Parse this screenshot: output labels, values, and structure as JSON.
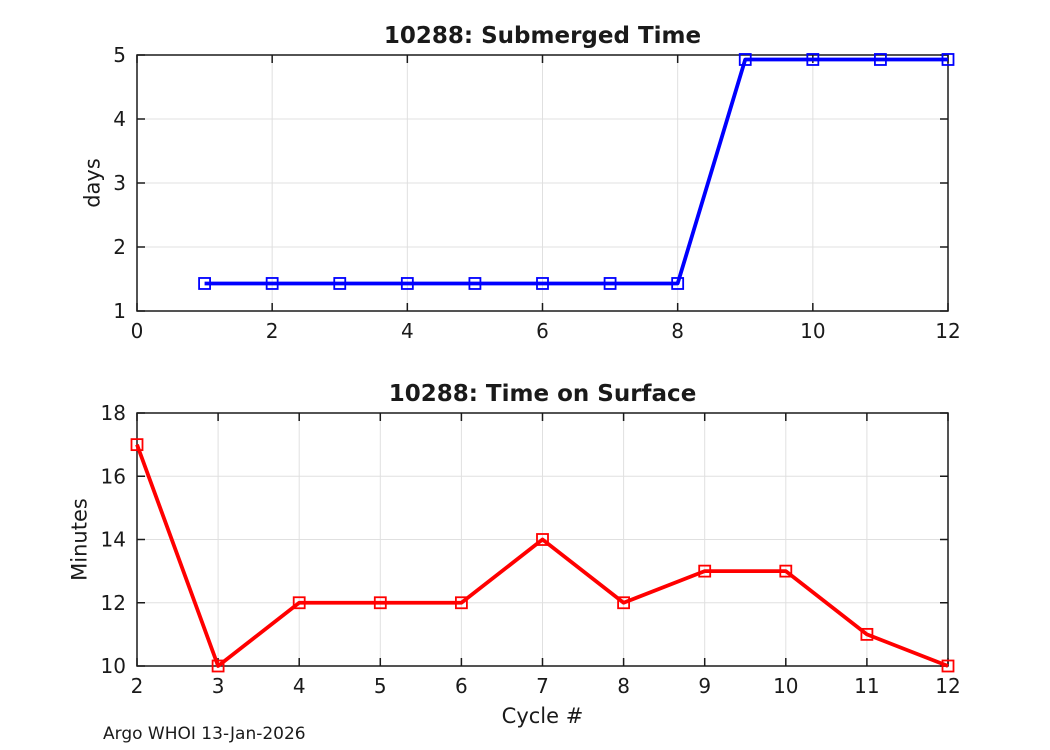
{
  "figure": {
    "annotation": "Argo WHOI 13-Jan-2026"
  },
  "style": {
    "background": "#ffffff",
    "spine_color": "#1a1a1a",
    "tick_color": "#1a1a1a",
    "grid_color": "#e0e0e0",
    "text_color": "#1a1a1a",
    "blue_series_color": "#0000ff",
    "red_series_color": "#ff0000"
  },
  "chart_data": [
    {
      "name": "submerged-time",
      "type": "line",
      "title": "10288: Submerged Time",
      "xlabel": "",
      "ylabel": "days",
      "xlim": [
        0,
        12
      ],
      "ylim": [
        1,
        5
      ],
      "xticks": [
        0,
        2,
        4,
        6,
        8,
        10,
        12
      ],
      "yticks": [
        1,
        2,
        3,
        4,
        5
      ],
      "grid": true,
      "legend": null,
      "series": [
        {
          "name": "submerged-days",
          "color": "#0000ff",
          "marker": "open-square",
          "x": [
            1,
            2,
            3,
            4,
            5,
            6,
            7,
            8,
            9,
            10,
            11,
            12
          ],
          "y": [
            1.43,
            1.43,
            1.43,
            1.43,
            1.43,
            1.43,
            1.43,
            1.43,
            4.93,
            4.93,
            4.93,
            4.93
          ]
        }
      ]
    },
    {
      "name": "time-on-surface",
      "type": "line",
      "title": "10288: Time on Surface",
      "xlabel": "Cycle #",
      "ylabel": "Minutes",
      "xlim": [
        2,
        12
      ],
      "ylim": [
        10,
        18
      ],
      "xticks": [
        2,
        3,
        4,
        5,
        6,
        7,
        8,
        9,
        10,
        11,
        12
      ],
      "yticks": [
        10,
        12,
        14,
        16,
        18
      ],
      "grid": true,
      "legend": null,
      "series": [
        {
          "name": "surface-minutes",
          "color": "#ff0000",
          "marker": "open-square",
          "x": [
            2,
            3,
            4,
            5,
            6,
            7,
            8,
            9,
            10,
            11,
            12
          ],
          "y": [
            17,
            10,
            12,
            12,
            12,
            14,
            12,
            13,
            13,
            11,
            10
          ]
        }
      ]
    }
  ]
}
